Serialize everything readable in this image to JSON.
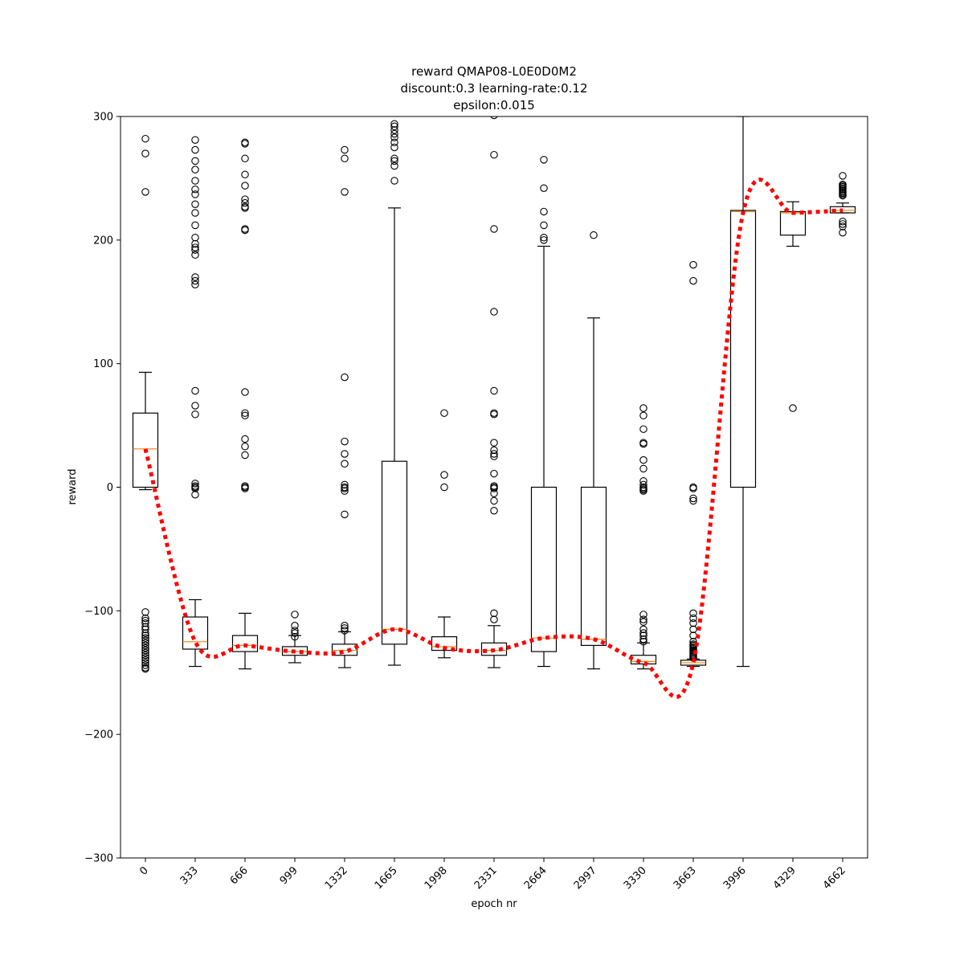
{
  "chart_data": {
    "type": "box",
    "title_lines": [
      "reward QMAP08-L0E0D0M2",
      "discount:0.3 learning-rate:0.12",
      "epsilon:0.015"
    ],
    "xlabel": "epoch nr",
    "ylabel": "reward",
    "ylim": [
      -300,
      300
    ],
    "yticks": [
      -300,
      -200,
      -100,
      0,
      100,
      200,
      300
    ],
    "categories": [
      "0",
      "333",
      "666",
      "999",
      "1332",
      "1665",
      "1998",
      "2331",
      "2664",
      "2997",
      "3330",
      "3663",
      "3996",
      "4329",
      "4662"
    ],
    "median_color": "#ff7f0e",
    "trend_color": "#ff0000",
    "boxes": [
      {
        "q1": 0,
        "median": 31,
        "q3": 60,
        "whisker_low": -2,
        "whisker_high": 93,
        "outliers": [
          282,
          270,
          239,
          -101,
          -106,
          -108,
          -110,
          -113,
          -115,
          -118,
          -120,
          -122,
          -124,
          -126,
          -128,
          -130,
          -132,
          -134,
          -136,
          -138,
          -140,
          -142,
          -144,
          -146,
          -147
        ]
      },
      {
        "q1": -131,
        "median": -125,
        "q3": -105,
        "whisker_low": -145,
        "whisker_high": -91,
        "outliers": [
          281,
          273,
          264,
          257,
          248,
          241,
          237,
          229,
          222,
          212,
          202,
          197,
          194,
          192,
          188,
          170,
          167,
          164,
          78,
          66,
          59,
          3,
          1,
          0,
          -1,
          -6
        ]
      },
      {
        "q1": -133,
        "median": -128,
        "q3": -120,
        "whisker_low": -147,
        "whisker_high": -102,
        "outliers": [
          279,
          278,
          266,
          253,
          244,
          233,
          230,
          227,
          226,
          209,
          208,
          77,
          60,
          58,
          39,
          33,
          26,
          1,
          0,
          -1
        ]
      },
      {
        "q1": -136,
        "median": -133,
        "q3": -129,
        "whisker_low": -142,
        "whisker_high": -120,
        "outliers": [
          -103,
          -112,
          -116,
          -118,
          -121
        ]
      },
      {
        "q1": -136,
        "median": -132,
        "q3": -127,
        "whisker_low": -146,
        "whisker_high": -117,
        "outliers": [
          273,
          266,
          239,
          89,
          37,
          27,
          19,
          2,
          0,
          -1,
          -3,
          -22,
          -112,
          -114,
          -116
        ]
      },
      {
        "q1": -127,
        "median": -115,
        "q3": 21,
        "whisker_low": -144,
        "whisker_high": 226,
        "outliers": [
          294,
          292,
          289,
          286,
          283,
          279,
          275,
          266,
          264,
          260,
          248
        ]
      },
      {
        "q1": -132,
        "median": -129,
        "q3": -121,
        "whisker_low": -138,
        "whisker_high": -105,
        "outliers": [
          60,
          10,
          0
        ]
      },
      {
        "q1": -136,
        "median": -132,
        "q3": -126,
        "whisker_low": -146,
        "whisker_high": -112,
        "outliers": [
          301,
          269,
          209,
          142,
          78,
          60,
          59,
          36,
          30,
          27,
          25,
          11,
          1,
          0,
          -1,
          -5,
          -11,
          -19,
          -102,
          -107
        ]
      },
      {
        "q1": -133,
        "median": -122,
        "q3": 0,
        "whisker_low": -145,
        "whisker_high": 195,
        "outliers": [
          265,
          242,
          223,
          212,
          202,
          200
        ]
      },
      {
        "q1": -128,
        "median": -123,
        "q3": 0,
        "whisker_low": -147,
        "whisker_high": 137,
        "outliers": [
          204
        ]
      },
      {
        "q1": -143,
        "median": -141,
        "q3": -136,
        "whisker_low": -147,
        "whisker_high": -126,
        "outliers": [
          64,
          58,
          47,
          36,
          35,
          22,
          15,
          5,
          2,
          0,
          -1,
          -2,
          -3,
          -103,
          -107,
          -109,
          -115,
          -118,
          -120,
          -123,
          -125
        ]
      },
      {
        "q1": -144,
        "median": -142,
        "q3": -140,
        "whisker_low": -145,
        "whisker_high": -139,
        "outliers": [
          180,
          167,
          0,
          -1,
          -9,
          -11,
          -102,
          -106,
          -110,
          -115,
          -120,
          -125,
          -127,
          -128,
          -129,
          -130,
          -131,
          -132,
          -133,
          -134,
          -135,
          -136,
          -137,
          -138
        ]
      },
      {
        "q1": 0,
        "median": 223,
        "q3": 224,
        "whisker_low": -145,
        "whisker_high": 300,
        "outliers": []
      },
      {
        "q1": 204,
        "median": 222,
        "q3": 223,
        "whisker_low": 195,
        "whisker_high": 231,
        "outliers": [
          64
        ]
      },
      {
        "q1": 222,
        "median": 224,
        "q3": 227,
        "whisker_low": 222,
        "whisker_high": 230,
        "outliers": [
          252,
          245,
          244,
          243,
          242,
          241,
          240,
          239,
          238,
          237,
          236,
          215,
          213,
          211,
          206
        ]
      }
    ],
    "trend_line": [
      31,
      -125,
      -128,
      -133,
      -133,
      -115,
      -130,
      -132,
      -122,
      -123,
      -142,
      -142,
      222,
      222,
      224
    ]
  }
}
